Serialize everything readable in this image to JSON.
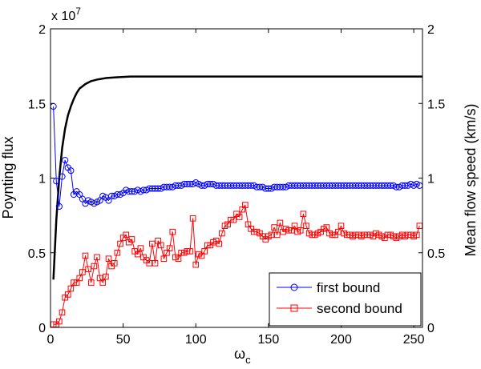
{
  "chart_data": {
    "type": "line",
    "xlabel": "ω",
    "xlabel_sub": "c",
    "ylabel_left": "Poynting flux",
    "ylabel_right": "Mean flow speed (km/s)",
    "left_exponent_base": "x 10",
    "left_exponent_power": "7",
    "xlim": [
      0,
      256
    ],
    "ylim_left": [
      0,
      2
    ],
    "ylim_right": [
      0,
      2
    ],
    "xticks": [
      0,
      50,
      100,
      150,
      200,
      250
    ],
    "yticks_left": [
      0,
      0.5,
      1,
      1.5,
      2
    ],
    "yticks_right": [
      0,
      0.5,
      1,
      1.5,
      2
    ],
    "ytick_labels_left": [
      "0",
      "0.5",
      "1",
      "1.5",
      "2"
    ],
    "ytick_labels_right": [
      "0",
      "0.5",
      "1",
      "1.5",
      "2"
    ],
    "xtick_labels": [
      "0",
      "50",
      "100",
      "150",
      "200",
      "250"
    ],
    "colors": {
      "first": "#0000ff",
      "second": "#ff0000",
      "poynting": "#000000"
    },
    "series": [
      {
        "name": "Poynting flux",
        "axis": "left",
        "style": "line",
        "x": [
          2,
          4,
          6,
          8,
          10,
          12,
          14,
          16,
          18,
          20,
          24,
          28,
          32,
          38,
          45,
          55,
          65,
          80,
          100,
          130,
          160,
          200,
          256
        ],
        "values": [
          0.32,
          0.72,
          1.0,
          1.2,
          1.33,
          1.42,
          1.48,
          1.53,
          1.57,
          1.6,
          1.63,
          1.65,
          1.66,
          1.67,
          1.675,
          1.68,
          1.68,
          1.68,
          1.68,
          1.68,
          1.68,
          1.68,
          1.68
        ]
      },
      {
        "name": "first bound",
        "axis": "right",
        "style": "line-circle",
        "x": [
          2,
          4,
          6,
          8,
          10,
          12,
          14,
          16,
          18,
          20,
          22,
          24,
          26,
          28,
          30,
          32,
          34,
          36,
          38,
          40,
          42,
          44,
          46,
          48,
          50,
          52,
          54,
          56,
          58,
          60,
          62,
          64,
          66,
          68,
          70,
          72,
          74,
          76,
          78,
          80,
          82,
          84,
          86,
          88,
          90,
          92,
          94,
          96,
          98,
          100,
          102,
          104,
          106,
          108,
          110,
          112,
          114,
          116,
          118,
          120,
          122,
          124,
          126,
          128,
          130,
          132,
          134,
          136,
          138,
          140,
          142,
          144,
          146,
          148,
          150,
          152,
          154,
          156,
          158,
          160,
          162,
          164,
          166,
          168,
          170,
          172,
          174,
          176,
          178,
          180,
          182,
          184,
          186,
          188,
          190,
          192,
          194,
          196,
          198,
          200,
          202,
          204,
          206,
          208,
          210,
          212,
          214,
          216,
          218,
          220,
          222,
          224,
          226,
          228,
          230,
          232,
          234,
          236,
          238,
          240,
          242,
          244,
          246,
          248,
          250,
          252,
          254
        ],
        "values": [
          1.48,
          0.98,
          0.81,
          1.01,
          1.12,
          1.07,
          1.05,
          0.89,
          0.91,
          0.89,
          0.86,
          0.83,
          0.85,
          0.84,
          0.83,
          0.84,
          0.85,
          0.88,
          0.87,
          0.85,
          0.88,
          0.88,
          0.89,
          0.89,
          0.9,
          0.92,
          0.91,
          0.91,
          0.91,
          0.92,
          0.91,
          0.92,
          0.92,
          0.93,
          0.93,
          0.93,
          0.93,
          0.93,
          0.94,
          0.94,
          0.94,
          0.94,
          0.95,
          0.95,
          0.95,
          0.96,
          0.96,
          0.96,
          0.96,
          0.97,
          0.96,
          0.95,
          0.95,
          0.96,
          0.96,
          0.96,
          0.95,
          0.95,
          0.95,
          0.95,
          0.95,
          0.95,
          0.95,
          0.95,
          0.95,
          0.95,
          0.95,
          0.95,
          0.95,
          0.95,
          0.94,
          0.94,
          0.94,
          0.93,
          0.93,
          0.93,
          0.94,
          0.94,
          0.94,
          0.94,
          0.94,
          0.95,
          0.95,
          0.95,
          0.95,
          0.95,
          0.95,
          0.95,
          0.95,
          0.95,
          0.95,
          0.95,
          0.95,
          0.95,
          0.95,
          0.95,
          0.95,
          0.95,
          0.95,
          0.95,
          0.95,
          0.95,
          0.95,
          0.95,
          0.95,
          0.95,
          0.95,
          0.95,
          0.95,
          0.95,
          0.95,
          0.95,
          0.95,
          0.95,
          0.95,
          0.95,
          0.95,
          0.95,
          0.94,
          0.94,
          0.95,
          0.95,
          0.95,
          0.96,
          0.95,
          0.96,
          0.95
        ]
      },
      {
        "name": "second bound",
        "axis": "right",
        "style": "line-square",
        "x": [
          2,
          4,
          6,
          8,
          10,
          12,
          14,
          16,
          18,
          20,
          22,
          24,
          26,
          28,
          30,
          32,
          34,
          36,
          38,
          40,
          42,
          44,
          46,
          48,
          50,
          52,
          54,
          56,
          58,
          60,
          62,
          64,
          66,
          68,
          70,
          72,
          74,
          76,
          78,
          80,
          82,
          84,
          86,
          88,
          90,
          92,
          94,
          96,
          98,
          100,
          102,
          104,
          106,
          108,
          110,
          112,
          114,
          116,
          118,
          120,
          122,
          124,
          126,
          128,
          130,
          132,
          134,
          136,
          138,
          140,
          142,
          144,
          146,
          148,
          150,
          152,
          154,
          156,
          158,
          160,
          162,
          164,
          166,
          168,
          170,
          172,
          174,
          176,
          178,
          180,
          182,
          184,
          186,
          188,
          190,
          192,
          194,
          196,
          198,
          200,
          202,
          204,
          206,
          208,
          210,
          212,
          214,
          216,
          218,
          220,
          222,
          224,
          226,
          228,
          230,
          232,
          234,
          236,
          238,
          240,
          242,
          244,
          246,
          248,
          250,
          252,
          254
        ],
        "values": [
          0.02,
          0.02,
          0.04,
          0.1,
          0.2,
          0.22,
          0.26,
          0.3,
          0.3,
          0.33,
          0.37,
          0.48,
          0.39,
          0.3,
          0.41,
          0.47,
          0.33,
          0.3,
          0.34,
          0.46,
          0.41,
          0.43,
          0.5,
          0.56,
          0.6,
          0.62,
          0.57,
          0.59,
          0.51,
          0.49,
          0.53,
          0.47,
          0.45,
          0.43,
          0.56,
          0.43,
          0.58,
          0.55,
          0.46,
          0.5,
          0.53,
          0.64,
          0.47,
          0.46,
          0.5,
          0.5,
          0.51,
          0.51,
          0.73,
          0.42,
          0.49,
          0.48,
          0.51,
          0.55,
          0.55,
          0.57,
          0.58,
          0.56,
          0.63,
          0.68,
          0.69,
          0.72,
          0.72,
          0.76,
          0.74,
          0.79,
          0.82,
          0.69,
          0.66,
          0.64,
          0.64,
          0.63,
          0.61,
          0.59,
          0.61,
          0.62,
          0.67,
          0.62,
          0.7,
          0.64,
          0.66,
          0.65,
          0.65,
          0.68,
          0.64,
          0.65,
          0.76,
          0.68,
          0.63,
          0.62,
          0.62,
          0.63,
          0.64,
          0.66,
          0.67,
          0.63,
          0.62,
          0.62,
          0.64,
          0.68,
          0.63,
          0.62,
          0.62,
          0.61,
          0.62,
          0.62,
          0.61,
          0.62,
          0.62,
          0.62,
          0.61,
          0.63,
          0.62,
          0.61,
          0.6,
          0.62,
          0.62,
          0.61,
          0.6,
          0.61,
          0.62,
          0.61,
          0.62,
          0.62,
          0.61,
          0.62,
          0.68
        ]
      }
    ],
    "legend": {
      "placement": "bottom-right",
      "entries": [
        {
          "label": "first bound",
          "series": "first bound"
        },
        {
          "label": "second bound",
          "series": "second bound"
        }
      ]
    }
  }
}
